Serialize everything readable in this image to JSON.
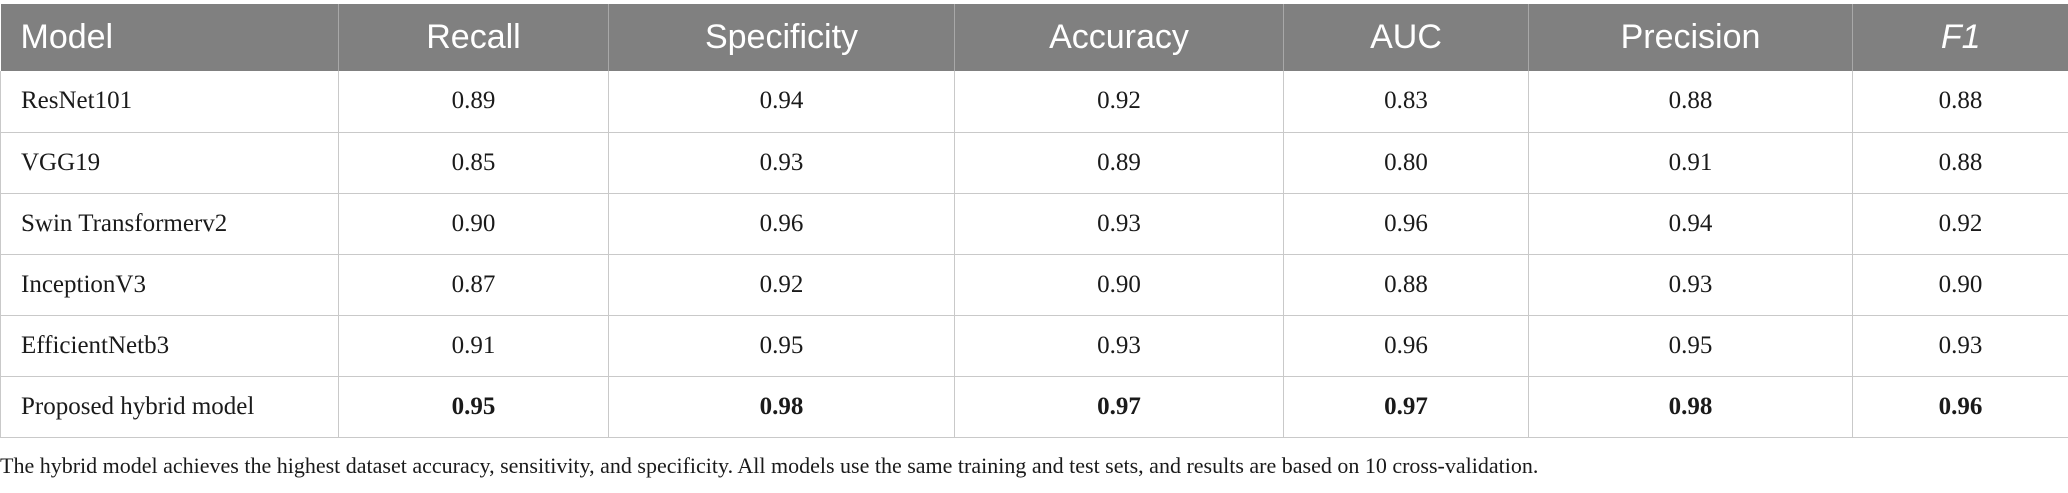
{
  "table": {
    "headers": [
      "Model",
      "Recall",
      "Specificity",
      "Accuracy",
      "AUC",
      "Precision",
      "F1"
    ],
    "rows": [
      {
        "model": "ResNet101",
        "values": [
          "0.89",
          "0.94",
          "0.92",
          "0.83",
          "0.88",
          "0.88"
        ],
        "bold": false
      },
      {
        "model": "VGG19",
        "values": [
          "0.85",
          "0.93",
          "0.89",
          "0.80",
          "0.91",
          "0.88"
        ],
        "bold": false
      },
      {
        "model": "Swin Transformerv2",
        "values": [
          "0.90",
          "0.96",
          "0.93",
          "0.96",
          "0.94",
          "0.92"
        ],
        "bold": false
      },
      {
        "model": "InceptionV3",
        "values": [
          "0.87",
          "0.92",
          "0.90",
          "0.88",
          "0.93",
          "0.90"
        ],
        "bold": false
      },
      {
        "model": "EfficientNetb3",
        "values": [
          "0.91",
          "0.95",
          "0.93",
          "0.96",
          "0.95",
          "0.93"
        ],
        "bold": false
      },
      {
        "model": "Proposed hybrid model",
        "values": [
          "0.95",
          "0.98",
          "0.97",
          "0.97",
          "0.98",
          "0.96"
        ],
        "bold": true
      }
    ],
    "header_color": "#808080"
  },
  "footnote": "The hybrid model achieves the highest dataset accuracy, sensitivity, and specificity. All models use the same training and test sets, and results are based on 10 cross-validation."
}
